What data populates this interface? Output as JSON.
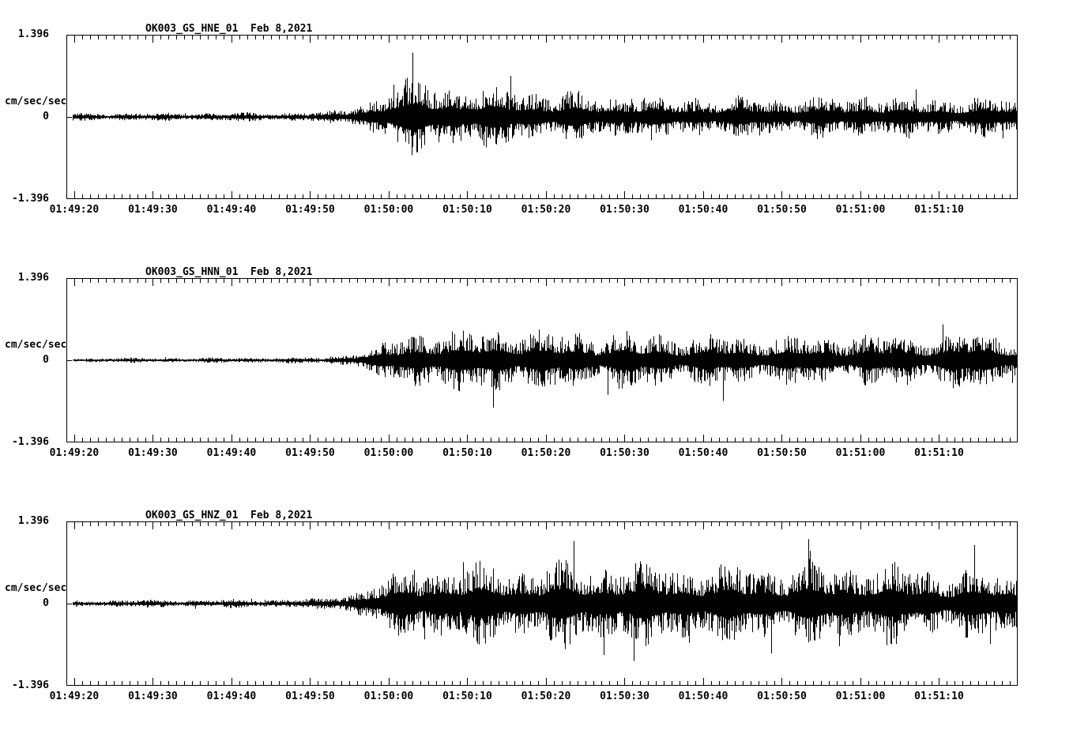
{
  "page": {
    "background": "#ffffff",
    "trace_color": "#000000",
    "axis_color": "#000000"
  },
  "chart_data": [
    {
      "type": "line",
      "subtype": "seismogram",
      "title": "OK003_GS_HNE_01  Feb 8,2021",
      "station_channel": "OK003_GS_HNE_01",
      "date": "Feb 8,2021",
      "ylabel": "cm/sec/sec",
      "ylim": [
        -1.396,
        1.396
      ],
      "y_tick_labels": [
        "1.396",
        "0",
        "-1.396"
      ],
      "x_tick_labels": [
        "01:49:20",
        "01:49:30",
        "01:49:40",
        "01:49:50",
        "01:50:00",
        "01:50:10",
        "01:50:20",
        "01:50:30",
        "01:50:40",
        "01:50:50",
        "01:51:00",
        "01:51:10"
      ],
      "x_tick_offsets_s": [
        1,
        11,
        21,
        31,
        41,
        51,
        61,
        71,
        81,
        91,
        101,
        111
      ],
      "x_span_seconds": 121,
      "minor_tick_interval_s": 1,
      "grid": false,
      "legend": false,
      "seed": 7,
      "spikiness": 0.02,
      "envelope": [
        [
          0,
          0.055
        ],
        [
          15,
          0.06
        ],
        [
          28,
          0.065
        ],
        [
          33,
          0.075
        ],
        [
          35,
          0.12
        ],
        [
          37,
          0.2
        ],
        [
          40,
          0.34
        ],
        [
          43,
          0.5
        ],
        [
          45,
          0.62
        ],
        [
          47,
          0.58
        ],
        [
          49,
          0.48
        ],
        [
          52,
          0.4
        ],
        [
          55,
          0.46
        ],
        [
          57,
          0.5
        ],
        [
          59,
          0.42
        ],
        [
          62,
          0.34
        ],
        [
          65,
          0.37
        ],
        [
          68,
          0.33
        ],
        [
          72,
          0.35
        ],
        [
          76,
          0.3
        ],
        [
          80,
          0.33
        ],
        [
          84,
          0.29
        ],
        [
          88,
          0.31
        ],
        [
          92,
          0.28
        ],
        [
          96,
          0.3
        ],
        [
          100,
          0.29
        ],
        [
          102,
          0.4
        ],
        [
          104,
          0.3
        ],
        [
          108,
          0.28
        ],
        [
          112,
          0.3
        ],
        [
          116,
          0.29
        ],
        [
          121,
          0.3
        ]
      ]
    },
    {
      "type": "line",
      "subtype": "seismogram",
      "title": "OK003_GS_HNN_01  Feb 8,2021",
      "station_channel": "OK003_GS_HNN_01",
      "date": "Feb 8,2021",
      "ylabel": "cm/sec/sec",
      "ylim": [
        -1.396,
        1.396
      ],
      "y_tick_labels": [
        "1.396",
        "0",
        "-1.396"
      ],
      "x_tick_labels": [
        "01:49:20",
        "01:49:30",
        "01:49:40",
        "01:49:50",
        "01:50:00",
        "01:50:10",
        "01:50:20",
        "01:50:30",
        "01:50:40",
        "01:50:50",
        "01:51:00",
        "01:51:10"
      ],
      "x_tick_offsets_s": [
        1,
        11,
        21,
        31,
        41,
        51,
        61,
        71,
        81,
        91,
        101,
        111
      ],
      "x_span_seconds": 121,
      "minor_tick_interval_s": 1,
      "grid": false,
      "legend": false,
      "seed": 13,
      "spikiness": 0.03,
      "envelope": [
        [
          0,
          0.035
        ],
        [
          20,
          0.04
        ],
        [
          30,
          0.045
        ],
        [
          33,
          0.05
        ],
        [
          35,
          0.09
        ],
        [
          38,
          0.16
        ],
        [
          41,
          0.28
        ],
        [
          44,
          0.42
        ],
        [
          46,
          0.5
        ],
        [
          48,
          0.46
        ],
        [
          50,
          0.42
        ],
        [
          53,
          0.48
        ],
        [
          56,
          0.55
        ],
        [
          58,
          0.48
        ],
        [
          61,
          0.4
        ],
        [
          64,
          0.45
        ],
        [
          67,
          0.4
        ],
        [
          70,
          0.43
        ],
        [
          73,
          0.38
        ],
        [
          76,
          0.42
        ],
        [
          79,
          0.37
        ],
        [
          82,
          0.4
        ],
        [
          85,
          0.36
        ],
        [
          88,
          0.39
        ],
        [
          91,
          0.35
        ],
        [
          94,
          0.38
        ],
        [
          97,
          0.34
        ],
        [
          100,
          0.37
        ],
        [
          103,
          0.4
        ],
        [
          106,
          0.36
        ],
        [
          109,
          0.38
        ],
        [
          112,
          0.42
        ],
        [
          115,
          0.46
        ],
        [
          118,
          0.4
        ],
        [
          121,
          0.38
        ]
      ]
    },
    {
      "type": "line",
      "subtype": "seismogram",
      "title": "OK003_GS_HNZ_01  Feb 8,2021",
      "station_channel": "OK003_GS_HNZ_01",
      "date": "Feb 8,2021",
      "ylabel": "cm/sec/sec",
      "ylim": [
        -1.396,
        1.396
      ],
      "y_tick_labels": [
        "1.396",
        "0",
        "-1.396"
      ],
      "x_tick_labels": [
        "01:49:20",
        "01:49:30",
        "01:49:40",
        "01:49:50",
        "01:50:00",
        "01:50:10",
        "01:50:20",
        "01:50:30",
        "01:50:40",
        "01:50:50",
        "01:51:00",
        "01:51:10"
      ],
      "x_tick_offsets_s": [
        1,
        11,
        21,
        31,
        41,
        51,
        61,
        71,
        81,
        91,
        101,
        111
      ],
      "x_span_seconds": 121,
      "minor_tick_interval_s": 1,
      "grid": false,
      "legend": false,
      "seed": 29,
      "spikiness": 0.05,
      "envelope": [
        [
          0,
          0.05
        ],
        [
          20,
          0.06
        ],
        [
          30,
          0.07
        ],
        [
          33,
          0.08
        ],
        [
          35,
          0.13
        ],
        [
          38,
          0.25
        ],
        [
          41,
          0.4
        ],
        [
          44,
          0.52
        ],
        [
          47,
          0.58
        ],
        [
          50,
          0.55
        ],
        [
          54,
          0.6
        ],
        [
          58,
          0.57
        ],
        [
          62,
          0.62
        ],
        [
          66,
          0.58
        ],
        [
          70,
          0.62
        ],
        [
          74,
          0.58
        ],
        [
          78,
          0.6
        ],
        [
          82,
          0.57
        ],
        [
          86,
          0.6
        ],
        [
          90,
          0.57
        ],
        [
          94,
          0.6
        ],
        [
          98,
          0.57
        ],
        [
          101,
          0.62
        ],
        [
          104,
          0.58
        ],
        [
          108,
          0.54
        ],
        [
          112,
          0.52
        ],
        [
          116,
          0.5
        ],
        [
          121,
          0.46
        ]
      ]
    }
  ]
}
